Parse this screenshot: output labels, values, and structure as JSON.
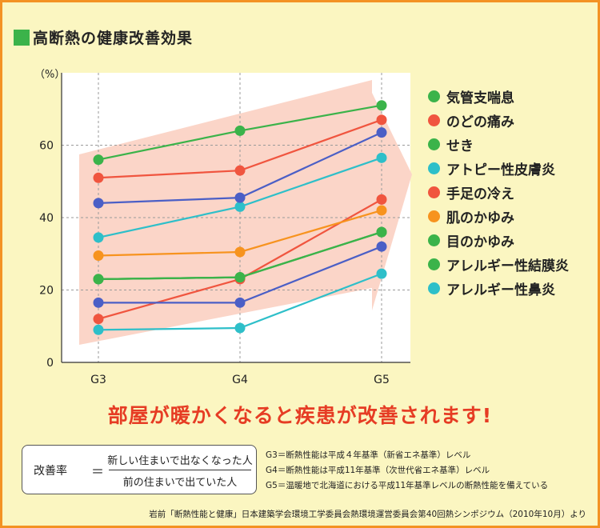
{
  "title": "高断熱の健康改善効果",
  "headline": "部屋が暖かくなると疾患が改善されます!",
  "formula": {
    "label": "改善率",
    "equals": "＝",
    "numerator": "新しい住まいで出なくなった人",
    "denominator": "前の住まいで出ていた人"
  },
  "notes": [
    "G3＝断熱性能は平成４年基準（新省エネ基準）レベル",
    "G4＝断熱性能は平成11年基準（次世代省エネ基準）レベル",
    "G5＝温暖地で北海道における平成11年基準レベルの断熱性能を備えている"
  ],
  "source": "岩前「断熱性能と健康」日本建築学会環境工学委員会熱環境運営委員会第40回熱シンポジウム（2010年10月）より",
  "colors": {
    "background": "#fbf6c1",
    "border": "#f39223",
    "arrow": "#fbd5c8",
    "headline": "#e63c24",
    "title_mark": "#3bb34a"
  },
  "chart_data": {
    "type": "line",
    "x": [
      "G3",
      "G4",
      "G5"
    ],
    "ylabel": "（%）",
    "ylim": [
      0,
      80
    ],
    "yticks": [
      0,
      20,
      40,
      60
    ],
    "grid": true,
    "legend_position": "right",
    "series": [
      {
        "name": "気管支喘息",
        "color": "#3bb34a",
        "values": [
          56,
          64,
          71
        ]
      },
      {
        "name": "のどの痛み",
        "color": "#f0553f",
        "values": [
          51,
          53,
          67
        ]
      },
      {
        "name": "せき",
        "color": "#3bb34a",
        "values": [
          23,
          23.5,
          36
        ]
      },
      {
        "name": "アトピー性皮膚炎",
        "color": "#2ebfc9",
        "values": [
          34.5,
          43,
          56.5
        ]
      },
      {
        "name": "手足の冷え",
        "color": "#f0553f",
        "values": [
          12,
          23,
          45
        ]
      },
      {
        "name": "肌のかゆみ",
        "color": "#f7931e",
        "values": [
          29.5,
          30.5,
          42
        ]
      },
      {
        "name": "目のかゆみ",
        "color": "#3bb34a",
        "values": [
          23,
          23.5,
          36
        ]
      },
      {
        "name": "アレルギー性結膜炎",
        "color": "#3bb34a",
        "values": [
          23,
          23.5,
          36
        ]
      },
      {
        "name": "アレルギー性鼻炎",
        "color": "#2ebfc9",
        "values": [
          9,
          9.5,
          24.5
        ]
      },
      {
        "name": "",
        "color": "#4b5fc6",
        "values": [
          44,
          45.5,
          63.5
        ]
      },
      {
        "name": "",
        "color": "#4b5fc6",
        "values": [
          16.5,
          16.5,
          32
        ]
      }
    ]
  }
}
